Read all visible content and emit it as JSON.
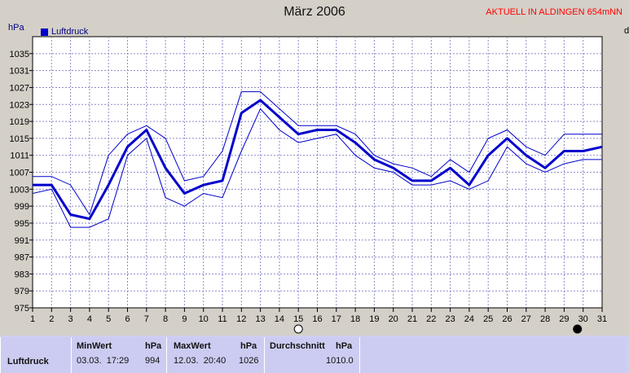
{
  "header": {
    "title": "März 2006",
    "status": "AKTUELL IN ALDINGEN 654mNN",
    "unit_label": "hPa",
    "right_edge_label": "d"
  },
  "legend": {
    "label": "Luftdruck"
  },
  "chart_data": {
    "type": "line",
    "title": "März 2006",
    "ylabel": "hPa",
    "xlabel": "",
    "x": [
      1,
      2,
      3,
      4,
      5,
      6,
      7,
      8,
      9,
      10,
      11,
      12,
      13,
      14,
      15,
      16,
      17,
      18,
      19,
      20,
      21,
      22,
      23,
      24,
      25,
      26,
      27,
      28,
      29,
      30,
      31
    ],
    "ylim": [
      975,
      1039
    ],
    "y_ticks": [
      975,
      979,
      983,
      987,
      991,
      995,
      999,
      1003,
      1007,
      1011,
      1015,
      1019,
      1023,
      1027,
      1031,
      1035
    ],
    "x_ticks": [
      1,
      2,
      3,
      4,
      5,
      6,
      7,
      8,
      9,
      10,
      11,
      12,
      13,
      14,
      15,
      16,
      17,
      18,
      19,
      20,
      21,
      22,
      23,
      24,
      25,
      26,
      27,
      28,
      29,
      30,
      31
    ],
    "grid": true,
    "legend_position": "top-left",
    "series": [
      {
        "name": "Luftdruck",
        "values": [
          1004,
          1004,
          997,
          996,
          1004,
          1013,
          1017,
          1008,
          1002,
          1004,
          1005,
          1021,
          1024,
          1020,
          1016,
          1017,
          1017,
          1014,
          1010,
          1008,
          1005,
          1005,
          1008,
          1004,
          1011,
          1015,
          1011,
          1008,
          1012,
          1012,
          1013
        ]
      },
      {
        "values": [
          1006,
          1006,
          1004,
          997,
          1011,
          1016,
          1018,
          1015,
          1005,
          1006,
          1012,
          1026,
          1026,
          1022,
          1018,
          1018,
          1018,
          1016,
          1011,
          1009,
          1008,
          1006,
          1010,
          1007,
          1015,
          1017,
          1013,
          1011,
          1016,
          1016,
          1016
        ]
      },
      {
        "values": [
          1002,
          1003,
          994,
          994,
          996,
          1011,
          1015,
          1001,
          999,
          1002,
          1001,
          1012,
          1022,
          1017,
          1014,
          1015,
          1016,
          1011,
          1008,
          1007,
          1004,
          1004,
          1005,
          1003,
          1005,
          1013,
          1009,
          1007,
          1009,
          1010,
          1010
        ]
      }
    ],
    "moon_markers": [
      {
        "x": 15,
        "kind": "full-moon"
      },
      {
        "x": 29.7,
        "kind": "new-moon"
      }
    ],
    "colors": {
      "main": "#0000cc",
      "band": "#0000cc",
      "grid": "#8a8ac8",
      "plot_bg": "#ffffff"
    }
  },
  "summary": {
    "row_label": "Luftdruck",
    "min_label": "MinWert",
    "min_unit": "hPa",
    "min_datetime": "03.03.  17:29",
    "min_value": "994",
    "max_label": "MaxWert",
    "max_unit": "hPa",
    "max_datetime": "12.03.  20:40",
    "max_value": "1026",
    "avg_label": "Durchschnitt",
    "avg_unit": "hPa",
    "avg_value": "1010.0"
  }
}
